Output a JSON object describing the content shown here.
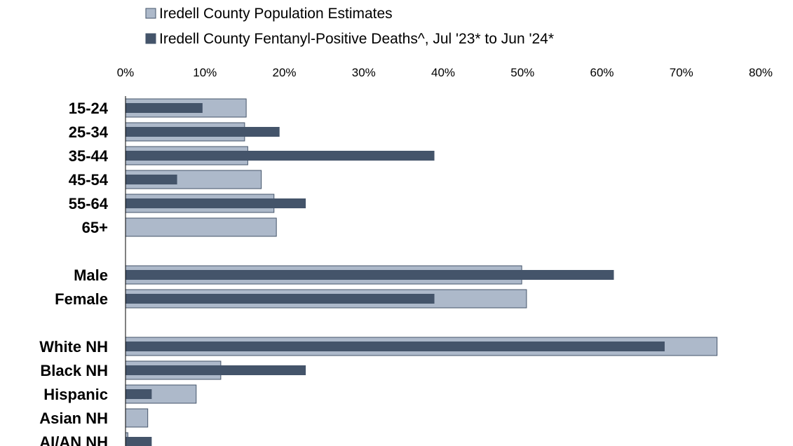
{
  "chart_data": {
    "type": "bar",
    "orientation": "horizontal",
    "legend_position": "top-left",
    "grid": false,
    "xlim": [
      0,
      80
    ],
    "x_ticks": [
      "0%",
      "10%",
      "20%",
      "30%",
      "40%",
      "50%",
      "60%",
      "70%",
      "80%"
    ],
    "x_tick_values": [
      0,
      10,
      20,
      30,
      40,
      50,
      60,
      70,
      80
    ],
    "colors": {
      "population": "#adb9ca",
      "deaths": "#44546a"
    },
    "categories": [
      "15-24",
      "25-34",
      "35-44",
      "45-54",
      "55-64",
      "65+",
      "",
      "Male",
      "Female",
      "",
      "White NH",
      "Black NH",
      "Hispanic",
      "Asian NH",
      "AI/AN NH"
    ],
    "series": [
      {
        "name": "Iredell County Population Estimates",
        "values": [
          15.2,
          15.0,
          15.4,
          17.1,
          18.7,
          19.0,
          null,
          49.9,
          50.5,
          null,
          74.5,
          12.0,
          8.9,
          2.8,
          0.3
        ]
      },
      {
        "name": "Iredell County Fentanyl-Positive Deaths^, Jul '23* to Jun '24*",
        "values": [
          9.7,
          19.4,
          38.9,
          6.5,
          22.7,
          null,
          null,
          61.5,
          38.9,
          null,
          67.9,
          22.7,
          3.3,
          null,
          3.3
        ]
      }
    ]
  }
}
